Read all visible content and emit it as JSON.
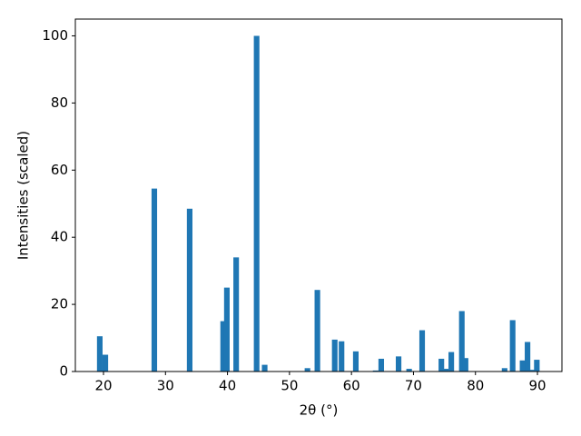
{
  "chart_data": {
    "type": "bar",
    "x_label": "2θ (°)",
    "y_label": "Intensities (scaled)",
    "color": "#1f77b4",
    "x": [
      19.4,
      20.3,
      28.2,
      33.9,
      39.3,
      39.9,
      41.4,
      44.7,
      46.0,
      52.9,
      54.5,
      57.3,
      58.4,
      60.7,
      63.9,
      64.8,
      67.6,
      69.3,
      71.4,
      74.5,
      75.2,
      76.1,
      77.8,
      78.4,
      84.7,
      86.0,
      87.6,
      88.4,
      89.1,
      89.9
    ],
    "values": [
      10.5,
      5,
      54.5,
      48.5,
      15,
      25,
      34,
      100,
      2,
      1,
      24.3,
      9.5,
      9,
      6,
      0.3,
      3.8,
      4.5,
      0.8,
      12.3,
      3.8,
      0.8,
      5.8,
      18,
      4,
      1,
      15.3,
      3.3,
      8.8,
      0.5,
      3.5
    ],
    "xlim": [
      15.46,
      93.95
    ],
    "ylim": [
      0,
      105
    ],
    "xticks": [
      20,
      30,
      40,
      50,
      60,
      70,
      80,
      90
    ],
    "yticks": [
      0,
      20,
      40,
      60,
      80,
      100
    ],
    "grid": false
  }
}
